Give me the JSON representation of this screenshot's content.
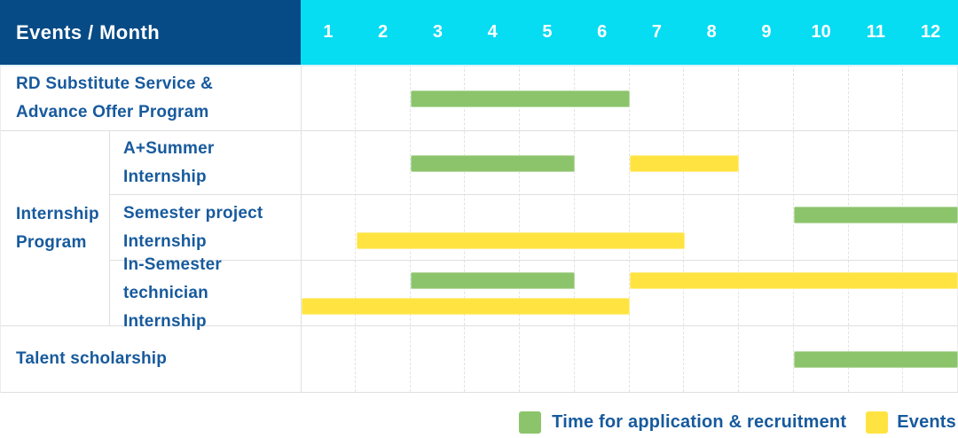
{
  "header": {
    "title": "Events / Month"
  },
  "colors": {
    "navy": "#064b85",
    "cyan": "#06dcf2",
    "green": "#8cc46b",
    "yellow": "#ffe441",
    "label_blue": "#175a9d"
  },
  "chart_data": {
    "type": "bar",
    "variant": "gantt",
    "title": "Events / Month",
    "x_axis": {
      "unit": "month",
      "ticks": [
        "1",
        "2",
        "3",
        "4",
        "5",
        "6",
        "7",
        "8",
        "9",
        "10",
        "11",
        "12"
      ],
      "range": [
        1,
        12
      ],
      "grid": "dashed-vertical"
    },
    "legend": [
      {
        "key": "application",
        "label": "Time for application & recruitment",
        "color": "#8cc46b"
      },
      {
        "key": "events",
        "label": "Events",
        "color": "#ffe441"
      }
    ],
    "legend_position": "bottom-right",
    "rows": [
      {
        "id": "rd-substitute",
        "label": "RD Substitute Service &\nAdvance Offer Program",
        "lines": [
          [
            {
              "series": "application",
              "start": 3,
              "end": 6
            }
          ]
        ]
      },
      {
        "id": "internship-program",
        "label": "Internship\nProgram",
        "children": [
          {
            "id": "a-plus-summer",
            "label": "A+Summer\nInternship",
            "lines": [
              [
                {
                  "series": "application",
                  "start": 3,
                  "end": 5
                },
                {
                  "series": "events",
                  "start": 7,
                  "end": 8
                }
              ]
            ]
          },
          {
            "id": "semester-project",
            "label": "Semester project\nInternship",
            "lines": [
              [
                {
                  "series": "application",
                  "start": 10,
                  "end": 12
                }
              ],
              [
                {
                  "series": "events",
                  "start": 2,
                  "end": 7
                }
              ]
            ]
          },
          {
            "id": "in-semester-technician",
            "label": "In-Semester\ntechnician Internship",
            "lines": [
              [
                {
                  "series": "application",
                  "start": 3,
                  "end": 5
                },
                {
                  "series": "events",
                  "start": 7,
                  "end": 12
                }
              ],
              [
                {
                  "series": "events",
                  "start": 1,
                  "end": 6
                }
              ]
            ]
          }
        ]
      },
      {
        "id": "talent-scholarship",
        "label": "Talent scholarship",
        "lines": [
          [
            {
              "series": "application",
              "start": 10,
              "end": 12
            }
          ]
        ]
      }
    ]
  }
}
